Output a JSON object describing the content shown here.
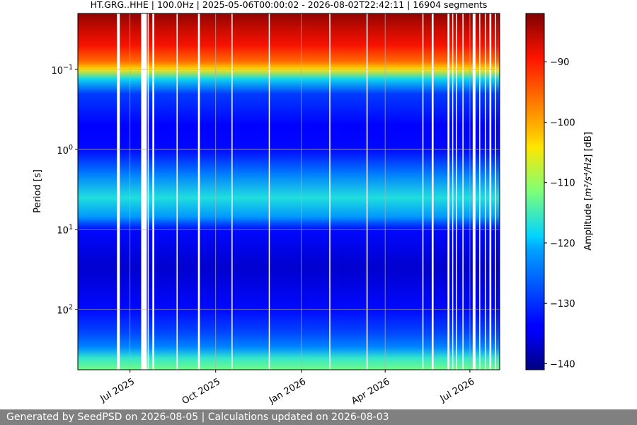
{
  "chart_data": {
    "type": "heatmap",
    "title": "HT.GRG..HHE | 100.0Hz | 2025-05-06T00:00:02 - 2026-08-02T22:42:11 | 16904 segments",
    "xlabel": "",
    "ylabel": "Period [s]",
    "x_range": [
      "2025-05-06",
      "2026-08-02"
    ],
    "y_scale": "log",
    "y_range": [
      0.02,
      570
    ],
    "y_inverted": true,
    "x_ticks": [
      {
        "label": "Jul 2025",
        "date": "2025-07-01"
      },
      {
        "label": "Oct 2025",
        "date": "2025-10-01"
      },
      {
        "label": "Jan 2026",
        "date": "2026-01-01"
      },
      {
        "label": "Apr 2026",
        "date": "2026-04-01"
      },
      {
        "label": "Jul 2026",
        "date": "2026-07-01"
      }
    ],
    "y_ticks": [
      {
        "base": "10",
        "exp": "−1",
        "value": 0.1
      },
      {
        "base": "10",
        "exp": "0",
        "value": 1
      },
      {
        "base": "10",
        "exp": "1",
        "value": 10
      },
      {
        "base": "10",
        "exp": "2",
        "value": 100
      }
    ],
    "grid": true,
    "colormap": "jet",
    "colorbar": {
      "label_main": "Amplitude [",
      "label_math": "m²/s⁴/Hz",
      "label_end": "] [dB]",
      "range": [
        -141,
        -82
      ],
      "ticks": [
        {
          "label": "−90",
          "value": -90
        },
        {
          "label": "−100",
          "value": -100
        },
        {
          "label": "−110",
          "value": -110
        },
        {
          "label": "−120",
          "value": -120
        },
        {
          "label": "−130",
          "value": -130
        },
        {
          "label": "−140",
          "value": -140
        }
      ]
    },
    "profile": [
      {
        "period": 0.02,
        "db": -83
      },
      {
        "period": 0.03,
        "db": -86
      },
      {
        "period": 0.05,
        "db": -89
      },
      {
        "period": 0.08,
        "db": -96
      },
      {
        "period": 0.1,
        "db": -104
      },
      {
        "period": 0.13,
        "db": -118
      },
      {
        "period": 0.2,
        "db": -129
      },
      {
        "period": 0.5,
        "db": -134
      },
      {
        "period": 1,
        "db": -133
      },
      {
        "period": 2,
        "db": -124
      },
      {
        "period": 4,
        "db": -117
      },
      {
        "period": 7,
        "db": -122
      },
      {
        "period": 10,
        "db": -133
      },
      {
        "period": 30,
        "db": -137
      },
      {
        "period": 100,
        "db": -133
      },
      {
        "period": 200,
        "db": -128
      },
      {
        "period": 300,
        "db": -123
      },
      {
        "period": 400,
        "db": -116
      },
      {
        "period": 570,
        "db": -112
      }
    ],
    "gaps": [
      {
        "start": "2025-06-17",
        "end": "2025-06-20"
      },
      {
        "start": "2025-07-13",
        "end": "2025-07-19"
      },
      {
        "start": "2025-07-20",
        "end": "2025-07-21"
      },
      {
        "start": "2025-07-25",
        "end": "2025-07-27"
      },
      {
        "start": "2025-08-20",
        "end": "2025-08-21"
      },
      {
        "start": "2025-09-12",
        "end": "2025-09-14"
      },
      {
        "start": "2025-10-18",
        "end": "2025-10-19"
      },
      {
        "start": "2025-11-27",
        "end": "2025-11-28"
      },
      {
        "start": "2026-01-31",
        "end": "2026-02-01"
      },
      {
        "start": "2026-03-12",
        "end": "2026-03-13"
      },
      {
        "start": "2026-05-11",
        "end": "2026-05-12"
      },
      {
        "start": "2026-05-21",
        "end": "2026-05-23"
      },
      {
        "start": "2026-06-07",
        "end": "2026-06-09"
      },
      {
        "start": "2026-06-12",
        "end": "2026-06-13"
      },
      {
        "start": "2026-06-16",
        "end": "2026-06-17"
      },
      {
        "start": "2026-06-23",
        "end": "2026-06-24"
      },
      {
        "start": "2026-07-04",
        "end": "2026-07-07"
      },
      {
        "start": "2026-07-11",
        "end": "2026-07-12"
      },
      {
        "start": "2026-07-17",
        "end": "2026-07-18"
      },
      {
        "start": "2026-07-22",
        "end": "2026-07-24"
      },
      {
        "start": "2026-07-28",
        "end": "2026-07-29"
      }
    ]
  },
  "footer": {
    "text": "Generated by SeedPSD on 2026-08-05 | Calculations updated on 2026-08-03"
  }
}
